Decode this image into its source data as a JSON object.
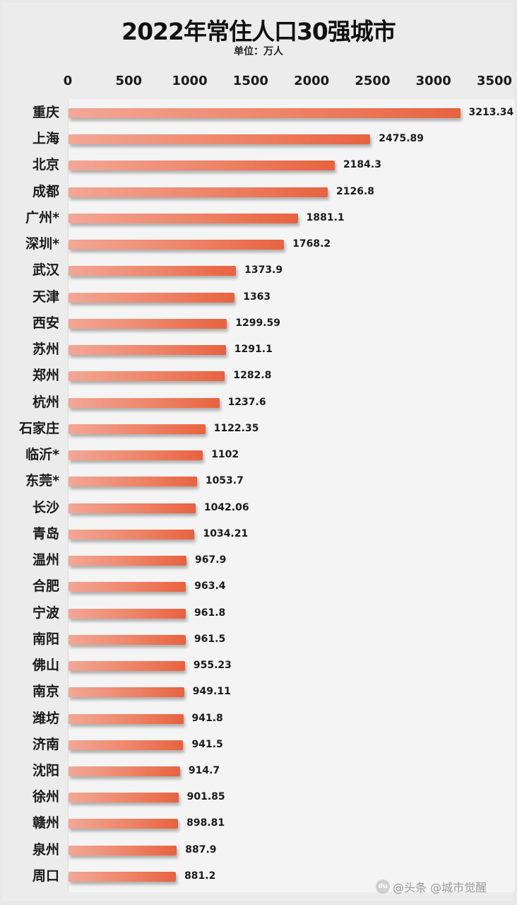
{
  "header": {
    "title": "2022年常住人口30强城市",
    "subtitle": "单位：万人"
  },
  "axis": {
    "ticks": [
      "0",
      "500",
      "1000",
      "1500",
      "2000",
      "2500",
      "3000",
      "3500"
    ],
    "tick_values": [
      0,
      500,
      1000,
      1500,
      2000,
      2500,
      3000,
      3500
    ]
  },
  "watermark": {
    "icon": "baidu-paw-icon",
    "text": "@头条 @城市觉醒"
  },
  "colors": {
    "bar_start": "#f3a796",
    "bar_end": "#e8623f",
    "background": "#ececec"
  },
  "chart_data": {
    "type": "bar",
    "orientation": "horizontal",
    "title": "2022年常住人口30强城市",
    "subtitle": "单位：万人",
    "xlabel": "",
    "ylabel": "",
    "xlim": [
      0,
      3500
    ],
    "x_ticks": [
      0,
      500,
      1000,
      1500,
      2000,
      2500,
      3000,
      3500
    ],
    "x_axis_position": "top",
    "grid": false,
    "legend": null,
    "categories": [
      "重庆",
      "上海",
      "北京",
      "成都",
      "广州*",
      "深圳*",
      "武汉",
      "天津",
      "西安",
      "苏州",
      "郑州",
      "杭州",
      "石家庄",
      "临沂*",
      "东莞*",
      "长沙",
      "青岛",
      "温州",
      "合肥",
      "宁波",
      "南阳",
      "佛山",
      "南京",
      "潍坊",
      "济南",
      "沈阳",
      "徐州",
      "赣州",
      "泉州",
      "周口"
    ],
    "values": [
      3213.34,
      2475.89,
      2184.3,
      2126.8,
      1881.1,
      1768.2,
      1373.9,
      1363,
      1299.59,
      1291.1,
      1282.8,
      1237.6,
      1122.35,
      1102,
      1053.7,
      1042.06,
      1034.21,
      967.9,
      963.4,
      961.8,
      961.5,
      955.23,
      949.11,
      941.8,
      941.5,
      914.7,
      901.85,
      898.81,
      887.9,
      881.2
    ],
    "value_labels": [
      "3213.34",
      "2475.89",
      "2184.3",
      "2126.8",
      "1881.1",
      "1768.2",
      "1373.9",
      "1363",
      "1299.59",
      "1291.1",
      "1282.8",
      "1237.6",
      "1122.35",
      "1102",
      "1053.7",
      "1042.06",
      "1034.21",
      "967.9",
      "963.4",
      "961.8",
      "961.5",
      "955.23",
      "949.11",
      "941.8",
      "941.5",
      "914.7",
      "901.85",
      "898.81",
      "887.9",
      "881.2"
    ]
  }
}
